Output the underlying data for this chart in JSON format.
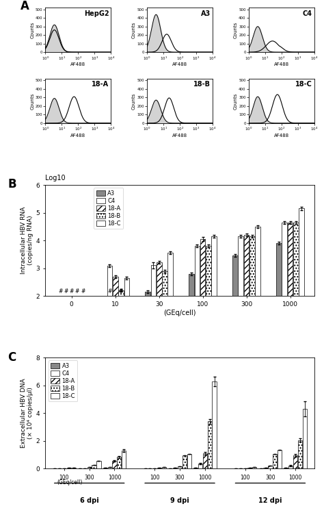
{
  "panel_A": {
    "cells": [
      "HepG2",
      "A3",
      "C4",
      "18-A",
      "18-B",
      "18-C"
    ],
    "gray_peak_log_center": [
      0.55,
      0.55,
      0.55,
      0.55,
      0.55,
      0.55
    ],
    "gray_peak_sigma": [
      0.28,
      0.28,
      0.28,
      0.28,
      0.28,
      0.28
    ],
    "gray_peak_height": [
      320,
      440,
      300,
      290,
      270,
      310
    ],
    "black_peak_log_center": [
      0.55,
      1.2,
      1.45,
      1.75,
      1.35,
      1.75
    ],
    "black_peak_sigma": [
      0.28,
      0.28,
      0.38,
      0.3,
      0.28,
      0.3
    ],
    "black_peak_height": [
      260,
      210,
      130,
      310,
      295,
      335
    ],
    "black_skew": [
      0,
      0,
      0.5,
      0,
      0,
      0
    ]
  },
  "panel_B": {
    "x_labels": [
      "0",
      "10",
      "30",
      "100",
      "300",
      "1000"
    ],
    "bar_width": 0.13,
    "series_order": [
      "A3",
      "C4",
      "18-A",
      "18-B",
      "18-C"
    ],
    "series": {
      "A3": {
        "color": "#888888",
        "hatch": "",
        "values": [
          null,
          null,
          2.15,
          2.8,
          3.45,
          3.9
        ]
      },
      "C4": {
        "color": "#ffffff",
        "hatch": "",
        "values": [
          null,
          3.08,
          3.1,
          3.8,
          4.15,
          4.65
        ]
      },
      "18-A": {
        "color": "#ffffff",
        "hatch": "////",
        "values": [
          null,
          2.7,
          3.2,
          4.05,
          4.2,
          4.65
        ]
      },
      "18-B": {
        "color": "#ffffff",
        "hatch": "....",
        "values": [
          null,
          2.2,
          2.9,
          3.8,
          4.15,
          4.65
        ]
      },
      "18-C": {
        "color": "#ffffff",
        "hatch": "====",
        "values": [
          null,
          2.65,
          3.55,
          4.15,
          4.5,
          5.15
        ]
      }
    },
    "errors": {
      "A3": [
        null,
        null,
        0.05,
        0.05,
        0.05,
        0.05
      ],
      "C4": [
        null,
        0.05,
        0.1,
        0.05,
        0.05,
        0.05
      ],
      "18-A": [
        null,
        0.05,
        0.05,
        0.07,
        0.05,
        0.05
      ],
      "18-B": [
        null,
        0.05,
        0.05,
        0.05,
        0.05,
        0.05
      ],
      "18-C": [
        null,
        0.05,
        0.05,
        0.05,
        0.05,
        0.07
      ]
    },
    "hash_at_zero": [
      "A3",
      "C4",
      "18-A",
      "18-B",
      "18-C"
    ],
    "hash_at_ten": [
      "C4",
      "18-B"
    ],
    "ylim": [
      2.0,
      6.0
    ],
    "yticks": [
      2,
      3,
      4,
      5,
      6
    ],
    "ylabel": "Intracellular HBV RNA\n(copies/ng RNA)",
    "xlabel": "(GEq/cell)",
    "title_note": "Log10"
  },
  "panel_C": {
    "series_order": [
      "A3",
      "C4",
      "18-A",
      "18-B",
      "18-C"
    ],
    "series": {
      "A3": {
        "color": "#888888",
        "hatch": ""
      },
      "C4": {
        "color": "#ffffff",
        "hatch": ""
      },
      "18-A": {
        "color": "#ffffff",
        "hatch": "////"
      },
      "18-B": {
        "color": "#ffffff",
        "hatch": "...."
      },
      "18-C": {
        "color": "#ffffff",
        "hatch": "===="
      }
    },
    "values": {
      "6dpi": {
        "100": {
          "A3": 0.02,
          "C4": 0.02,
          "18-A": 0.03,
          "18-B": 0.05,
          "18-C": 0.08
        },
        "300": {
          "A3": 0.02,
          "C4": 0.03,
          "18-A": 0.1,
          "18-B": 0.28,
          "18-C": 0.55
        },
        "1000": {
          "A3": 0.05,
          "C4": 0.12,
          "18-A": 0.55,
          "18-B": 0.85,
          "18-C": 1.3
        }
      },
      "9dpi": {
        "100": {
          "A3": 0.02,
          "C4": 0.02,
          "18-A": 0.03,
          "18-B": 0.08,
          "18-C": 0.12
        },
        "300": {
          "A3": 0.03,
          "C4": 0.05,
          "18-A": 0.18,
          "18-B": 0.95,
          "18-C": 1.05
        },
        "1000": {
          "A3": 0.08,
          "C4": 0.38,
          "18-A": 1.1,
          "18-B": 3.4,
          "18-C": 6.3
        }
      },
      "12dpi": {
        "100": {
          "A3": 0.02,
          "C4": 0.02,
          "18-A": 0.03,
          "18-B": 0.08,
          "18-C": 0.12
        },
        "300": {
          "A3": 0.02,
          "C4": 0.05,
          "18-A": 0.22,
          "18-B": 1.05,
          "18-C": 1.35
        },
        "1000": {
          "A3": 0.05,
          "C4": 0.22,
          "18-A": 0.95,
          "18-B": 2.05,
          "18-C": 4.3
        }
      }
    },
    "errors": {
      "6dpi": {
        "100": [
          0,
          0,
          0,
          0,
          0
        ],
        "300": [
          0,
          0,
          0,
          0,
          0
        ],
        "1000": [
          0,
          0,
          0.05,
          0.07,
          0.12
        ]
      },
      "9dpi": {
        "100": [
          0,
          0,
          0,
          0,
          0
        ],
        "300": [
          0,
          0,
          0,
          0,
          0
        ],
        "1000": [
          0,
          0.05,
          0.1,
          0.18,
          0.35
        ]
      },
      "12dpi": {
        "100": [
          0,
          0,
          0,
          0,
          0
        ],
        "300": [
          0,
          0,
          0,
          0,
          0
        ],
        "1000": [
          0,
          0.05,
          0.1,
          0.12,
          0.55
        ]
      }
    },
    "bar_width": 0.14,
    "ylim": [
      0,
      8
    ],
    "yticks": [
      0,
      2,
      4,
      6,
      8
    ],
    "ylabel": "Extracellular HBV DNA\n(× 10⁴ copies/μl)",
    "time_labels": [
      "6 dpi",
      "9 dpi",
      "12 dpi"
    ]
  }
}
